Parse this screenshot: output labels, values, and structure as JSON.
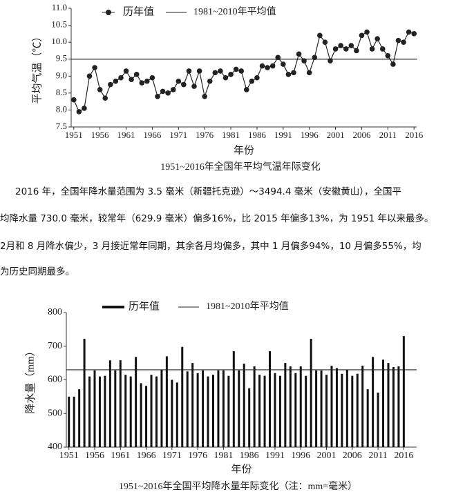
{
  "chart_data": [
    {
      "type": "line",
      "xlabel": "年份",
      "ylabel": "平均气温（℃）",
      "caption": "1951~2016年全国年平均气温年际变化",
      "x": [
        1951,
        1952,
        1953,
        1954,
        1955,
        1956,
        1957,
        1958,
        1959,
        1960,
        1961,
        1962,
        1963,
        1964,
        1965,
        1966,
        1967,
        1968,
        1969,
        1970,
        1971,
        1972,
        1973,
        1974,
        1975,
        1976,
        1977,
        1978,
        1979,
        1980,
        1981,
        1982,
        1983,
        1984,
        1985,
        1986,
        1987,
        1988,
        1989,
        1990,
        1991,
        1992,
        1993,
        1994,
        1995,
        1996,
        1997,
        1998,
        1999,
        2000,
        2001,
        2002,
        2003,
        2004,
        2005,
        2006,
        2007,
        2008,
        2009,
        2010,
        2011,
        2012,
        2013,
        2014,
        2015,
        2016
      ],
      "series": [
        {
          "name": "历年值",
          "color": "#222222",
          "values": [
            8.3,
            7.95,
            8.05,
            9.0,
            9.25,
            8.6,
            8.35,
            8.75,
            8.85,
            8.95,
            9.15,
            8.9,
            9.05,
            8.8,
            8.85,
            8.95,
            8.4,
            8.55,
            8.5,
            8.6,
            8.85,
            8.75,
            9.15,
            8.7,
            9.15,
            8.4,
            8.85,
            9.1,
            9.15,
            8.95,
            9.05,
            9.2,
            9.15,
            8.6,
            8.85,
            8.95,
            9.3,
            9.25,
            9.3,
            9.55,
            9.35,
            9.05,
            9.1,
            9.65,
            9.45,
            9.1,
            9.55,
            10.2,
            10.0,
            9.45,
            9.8,
            9.9,
            9.8,
            9.9,
            9.75,
            10.2,
            10.3,
            9.8,
            10.1,
            9.8,
            9.6,
            9.35,
            10.05,
            10.0,
            10.3,
            10.25
          ]
        }
      ],
      "reference": {
        "name": "1981~2010年平均值",
        "value": 9.5
      },
      "xlim": [
        1950.5,
        2016.5
      ],
      "xticks": [
        1951,
        1956,
        1961,
        1966,
        1971,
        1976,
        1981,
        1986,
        1991,
        1996,
        2001,
        2006,
        2011,
        2016
      ],
      "ylim": [
        7.5,
        11.0
      ],
      "yticks": [
        {
          "value": 7.5,
          "label": "7.5"
        },
        {
          "value": 8,
          "label": "8.0"
        },
        {
          "value": 8.5,
          "label": "8.5"
        },
        {
          "value": 9,
          "label": "9.0"
        },
        {
          "value": 9.5,
          "label": "9.5"
        },
        {
          "value": 10,
          "label": "10.0"
        },
        {
          "value": 10.5,
          "label": "10.5"
        },
        {
          "value": 11,
          "label": "11.0"
        }
      ]
    },
    {
      "type": "bar",
      "xlabel": "年份",
      "ylabel": "降水量（mm）",
      "caption": "1951~2016年全国平均降水量年际变化（注：mm=毫米）",
      "x": [
        1951,
        1952,
        1953,
        1954,
        1955,
        1956,
        1957,
        1958,
        1959,
        1960,
        1961,
        1962,
        1963,
        1964,
        1965,
        1966,
        1967,
        1968,
        1969,
        1970,
        1971,
        1972,
        1973,
        1974,
        1975,
        1976,
        1977,
        1978,
        1979,
        1980,
        1981,
        1982,
        1983,
        1984,
        1985,
        1986,
        1987,
        1988,
        1989,
        1990,
        1991,
        1992,
        1993,
        1994,
        1995,
        1996,
        1997,
        1998,
        1999,
        2000,
        2001,
        2002,
        2003,
        2004,
        2005,
        2006,
        2007,
        2008,
        2009,
        2010,
        2011,
        2012,
        2013,
        2014,
        2015,
        2016
      ],
      "series": [
        {
          "name": "历年值",
          "color": "#111111",
          "values": [
            550,
            550,
            572,
            722,
            610,
            628,
            610,
            612,
            658,
            628,
            658,
            615,
            610,
            668,
            590,
            582,
            615,
            610,
            630,
            670,
            600,
            592,
            698,
            625,
            650,
            620,
            628,
            610,
            615,
            628,
            628,
            612,
            685,
            628,
            648,
            575,
            640,
            615,
            612,
            685,
            620,
            612,
            650,
            640,
            620,
            640,
            612,
            722,
            628,
            628,
            615,
            642,
            635,
            618,
            630,
            612,
            618,
            642,
            572,
            668,
            562,
            660,
            650,
            638,
            640,
            730
          ]
        }
      ],
      "reference": {
        "name": "1981~2010年平均值",
        "value": 629.9
      },
      "xlim": [
        1950.5,
        2018.5
      ],
      "xticks": [
        1951,
        1956,
        1961,
        1966,
        1971,
        1976,
        1981,
        1986,
        1991,
        1996,
        2001,
        2006,
        2011,
        2016
      ],
      "ylim": [
        400,
        800
      ],
      "yticks": [
        400,
        500,
        600,
        700,
        800
      ]
    }
  ],
  "paragraphs": [
    "2016 年，全国年降水量范围为 3.5 毫米（新疆托克逊）～3494.4 毫米（安徽黄山），全国平",
    "均降水量 730.0 毫米，较常年（629.9 毫米）偏多16%，比 2015 年偏多13%，为 1951 年以来最多。",
    "2月和 8 月降水偏少，3 月接近常年同期，其余各月均偏多，其中 1 月偏多94%，10 月偏多55%，均",
    "为历史同期最多。"
  ]
}
